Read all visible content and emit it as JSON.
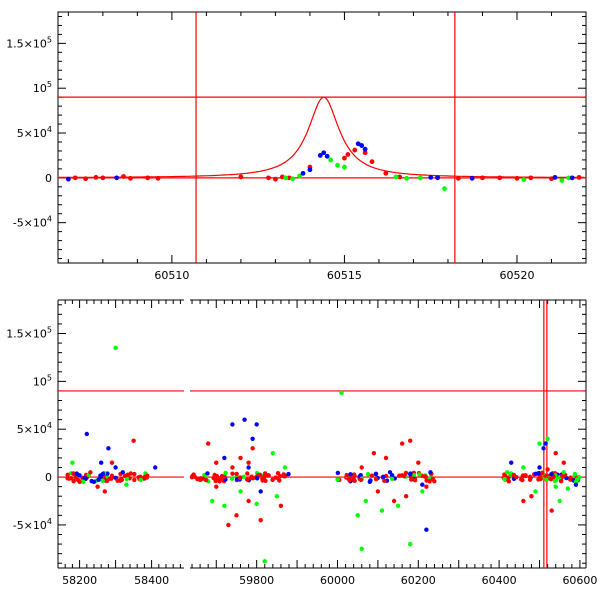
{
  "colors": {
    "red": "#ff0000",
    "green": "#00ff00",
    "blue": "#0000ff",
    "model": "#ff0000"
  },
  "chart_data": [
    {
      "type": "scatter",
      "panel": "top",
      "xlim": [
        60506.7,
        60522.0
      ],
      "ylim": [
        -95000,
        185000
      ],
      "xticks": [
        60510,
        60515,
        60520
      ],
      "xtick_labels": [
        "60510",
        "60515",
        "60520"
      ],
      "yticks": [
        150000,
        100000,
        50000,
        0,
        -50000
      ],
      "ytick_labels": [
        {
          "base": "1.5×10",
          "exp": "5"
        },
        {
          "base": "10",
          "exp": "5"
        },
        {
          "base": "5×10",
          "exp": "4"
        },
        {
          "base": "0",
          "exp": ""
        },
        {
          "base": "-5×10",
          "exp": "4"
        }
      ],
      "hlines": [
        90000,
        0
      ],
      "vlines": [
        60510.7,
        60518.2
      ],
      "model_curve": {
        "peak_x": 60514.4,
        "peak_y": 90000,
        "width": 0.55
      },
      "series": [
        {
          "color": "red",
          "points": [
            [
              60507.2,
              0
            ],
            [
              60507.5,
              -1000
            ],
            [
              60507.8,
              500
            ],
            [
              60508.0,
              0
            ],
            [
              60508.6,
              1500
            ],
            [
              60508.8,
              -500
            ],
            [
              60509.3,
              0
            ],
            [
              60509.6,
              -500
            ],
            [
              60512.0,
              1000
            ],
            [
              60512.8,
              0
            ],
            [
              60513.0,
              -1500
            ],
            [
              60513.2,
              1000
            ],
            [
              60513.4,
              0
            ],
            [
              60514.0,
              12000
            ],
            [
              60515.0,
              22000
            ],
            [
              60515.1,
              26000
            ],
            [
              60515.3,
              31000
            ],
            [
              60515.6,
              28000
            ],
            [
              60515.8,
              18000
            ],
            [
              60516.2,
              5000
            ],
            [
              60516.6,
              1000
            ],
            [
              60517.2,
              0
            ],
            [
              60517.7,
              500
            ],
            [
              60518.3,
              -500
            ],
            [
              60519.0,
              0
            ],
            [
              60519.5,
              0
            ],
            [
              60520.0,
              -500
            ],
            [
              60520.4,
              0
            ],
            [
              60521.0,
              -1000
            ],
            [
              60521.8,
              500
            ]
          ]
        },
        {
          "color": "green",
          "points": [
            [
              60513.3,
              0
            ],
            [
              60513.5,
              -1000
            ],
            [
              60513.7,
              2000
            ],
            [
              60514.6,
              20000
            ],
            [
              60514.8,
              14000
            ],
            [
              60515.0,
              12000
            ],
            [
              60516.5,
              1000
            ],
            [
              60516.8,
              -500
            ],
            [
              60517.2,
              0
            ],
            [
              60517.9,
              -12000
            ],
            [
              60520.2,
              -2000
            ],
            [
              60521.3,
              -3000
            ],
            [
              60521.5,
              0
            ]
          ]
        },
        {
          "color": "blue",
          "points": [
            [
              60507.0,
              -1500
            ],
            [
              60508.4,
              0
            ],
            [
              60513.8,
              5000
            ],
            [
              60514.0,
              9000
            ],
            [
              60514.3,
              25000
            ],
            [
              60514.4,
              28000
            ],
            [
              60514.5,
              24000
            ],
            [
              60515.4,
              38000
            ],
            [
              60515.5,
              36000
            ],
            [
              60515.6,
              32000
            ],
            [
              60517.5,
              500
            ],
            [
              60517.7,
              0
            ],
            [
              60518.7,
              -500
            ],
            [
              60521.1,
              500
            ],
            [
              60521.6,
              0
            ]
          ]
        }
      ]
    },
    {
      "type": "scatter",
      "panel": "bottom",
      "x_segments": [
        [
          58140,
          58490
        ],
        [
          59635,
          60615
        ]
      ],
      "ylim": [
        -95000,
        185000
      ],
      "xticks": [
        58200,
        58400,
        59800,
        60000,
        60200,
        60400,
        60600
      ],
      "xtick_labels": [
        "58200",
        "58400",
        "59800",
        "60000",
        "60200",
        "60400",
        "60600"
      ],
      "yticks": [
        150000,
        100000,
        50000,
        0,
        -50000
      ],
      "ytick_labels": [
        {
          "base": "1.5×10",
          "exp": "5"
        },
        {
          "base": "10",
          "exp": "5"
        },
        {
          "base": "5×10",
          "exp": "4"
        },
        {
          "base": "0",
          "exp": ""
        },
        {
          "base": "-5×10",
          "exp": "4"
        }
      ],
      "hlines": [
        90000,
        0
      ],
      "vlines": [
        60510.7,
        60518.2
      ],
      "series": [
        {
          "color": "green",
          "points": [
            [
              58300,
              135000
            ],
            [
              60010,
              88000
            ],
            [
              58210,
              -5000
            ],
            [
              58180,
              15000
            ],
            [
              58330,
              -8000
            ],
            [
              58370,
              -3000
            ],
            [
              59690,
              -25000
            ],
            [
              59720,
              -30000
            ],
            [
              59760,
              -15000
            ],
            [
              59800,
              -28000
            ],
            [
              59840,
              25000
            ],
            [
              59850,
              -20000
            ],
            [
              59820,
              -88000
            ],
            [
              59870,
              10000
            ],
            [
              60050,
              -40000
            ],
            [
              60070,
              -25000
            ],
            [
              60110,
              -35000
            ],
            [
              60150,
              -30000
            ],
            [
              60210,
              -15000
            ],
            [
              60060,
              -75000
            ],
            [
              60180,
              -70000
            ],
            [
              60420,
              5000
            ],
            [
              60460,
              10000
            ],
            [
              60490,
              -15000
            ],
            [
              60500,
              35000
            ],
            [
              60520,
              40000
            ],
            [
              60540,
              -10000
            ],
            [
              60550,
              -25000
            ],
            [
              60570,
              -12000
            ],
            [
              60560,
              5000
            ],
            [
              60590,
              -5000
            ]
          ]
        },
        {
          "color": "red",
          "points": [
            [
              58350,
              38000
            ],
            [
              58290,
              15000
            ],
            [
              58250,
              -10000
            ],
            [
              58270,
              -15000
            ],
            [
              58200,
              -5000
            ],
            [
              58230,
              5000
            ],
            [
              59680,
              35000
            ],
            [
              59700,
              15000
            ],
            [
              59740,
              10000
            ],
            [
              59760,
              20000
            ],
            [
              59780,
              15000
            ],
            [
              59790,
              30000
            ],
            [
              59750,
              -40000
            ],
            [
              59730,
              -50000
            ],
            [
              59780,
              -25000
            ],
            [
              59810,
              -45000
            ],
            [
              59860,
              -30000
            ],
            [
              59700,
              -10000
            ],
            [
              60060,
              10000
            ],
            [
              60090,
              25000
            ],
            [
              60120,
              20000
            ],
            [
              60160,
              35000
            ],
            [
              60180,
              38000
            ],
            [
              60200,
              15000
            ],
            [
              60100,
              -15000
            ],
            [
              60140,
              -25000
            ],
            [
              60170,
              -20000
            ],
            [
              60220,
              -10000
            ],
            [
              60460,
              -25000
            ],
            [
              60480,
              -20000
            ],
            [
              60520,
              8000
            ],
            [
              60540,
              25000
            ],
            [
              60560,
              15000
            ],
            [
              60530,
              -35000
            ]
          ]
        },
        {
          "color": "blue",
          "points": [
            [
              58220,
              45000
            ],
            [
              58280,
              30000
            ],
            [
              58260,
              15000
            ],
            [
              58300,
              10000
            ],
            [
              58240,
              -5000
            ],
            [
              58320,
              5000
            ],
            [
              58410,
              10000
            ],
            [
              59770,
              60000
            ],
            [
              59740,
              55000
            ],
            [
              59790,
              40000
            ],
            [
              59800,
              55000
            ],
            [
              59720,
              20000
            ],
            [
              59780,
              10000
            ],
            [
              59810,
              -15000
            ],
            [
              60210,
              -8000
            ],
            [
              60220,
              -55000
            ],
            [
              60080,
              -5000
            ],
            [
              60130,
              5000
            ],
            [
              60230,
              5000
            ],
            [
              60430,
              15000
            ],
            [
              60500,
              10000
            ],
            [
              60510,
              30000
            ],
            [
              60515,
              35000
            ],
            [
              60590,
              -8000
            ]
          ]
        }
      ]
    }
  ]
}
